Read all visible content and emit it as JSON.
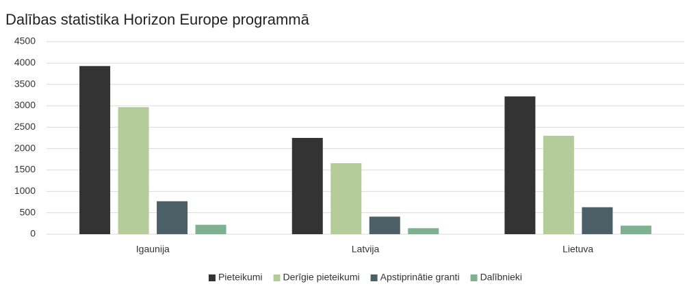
{
  "chart_data": {
    "type": "bar",
    "title": "Dalības statistika Horizon Europe programmā",
    "categories": [
      "Igaunija",
      "Latvija",
      "Lietuva"
    ],
    "series": [
      {
        "name": "Pieteikumi",
        "color": "#333333",
        "values": [
          3930,
          2250,
          3220
        ]
      },
      {
        "name": "Derīgie pieteikumi",
        "color": "#b3cc99",
        "values": [
          2970,
          1660,
          2300
        ]
      },
      {
        "name": "Apstiprinātie granti",
        "color": "#4d5f66",
        "values": [
          770,
          410,
          630
        ]
      },
      {
        "name": "Dalībnieki",
        "color": "#7fb08f",
        "values": [
          220,
          140,
          200
        ]
      }
    ],
    "ylim": [
      0,
      4500
    ],
    "yticks": [
      0,
      500,
      1000,
      1500,
      2000,
      2500,
      3000,
      3500,
      4000,
      4500
    ],
    "grid": true,
    "legend": "bottom"
  }
}
